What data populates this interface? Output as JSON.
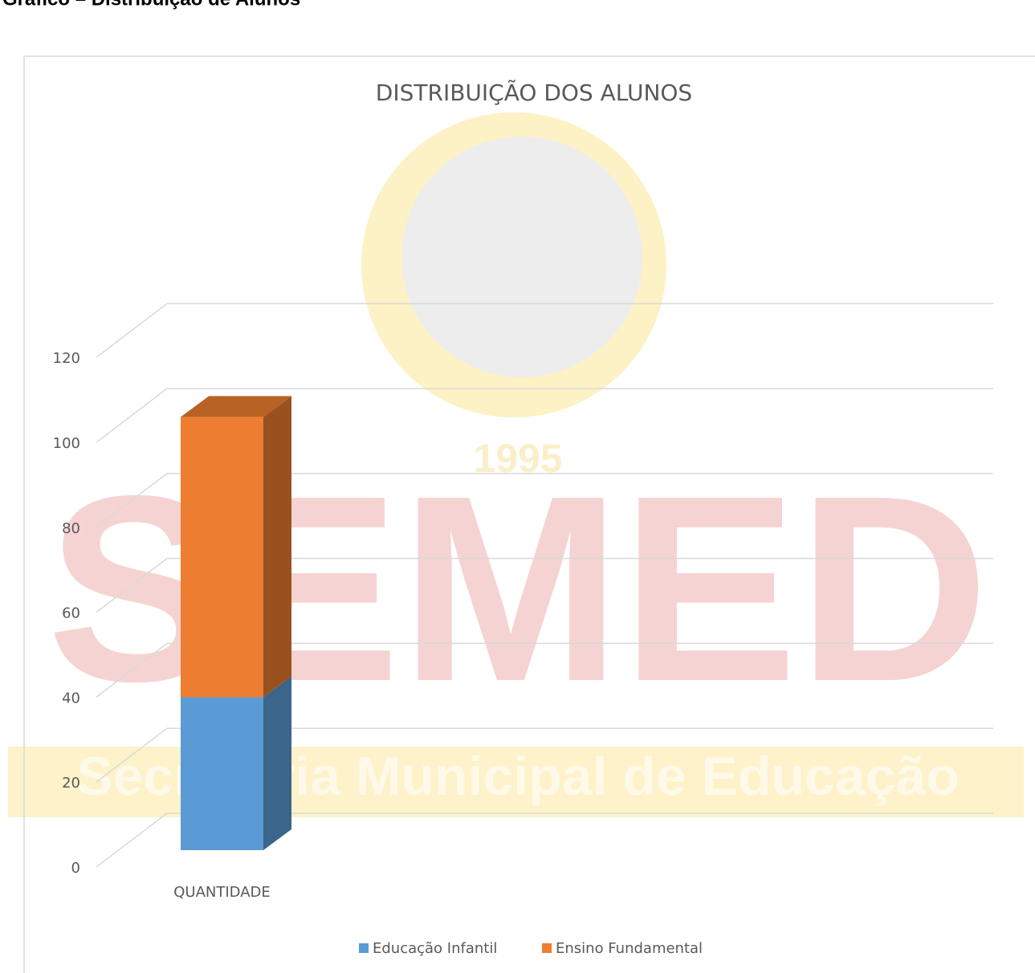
{
  "header": {
    "title": "Gráfico – Distribuição de Alunos"
  },
  "watermark": {
    "acronym": "SEMED",
    "name": "Secretaria Municipal de Educação",
    "year": "1995"
  },
  "chart_data": {
    "type": "bar3d-stacked",
    "title": "DISTRIBUIÇÃO DOS ALUNOS",
    "categories": [
      "QUANTIDADE"
    ],
    "series": [
      {
        "name": "Educação Infantil",
        "color": "#5b9bd5",
        "values": [
          36
        ]
      },
      {
        "name": "Ensino Fundamental",
        "color": "#ed7d31",
        "values": [
          66
        ]
      }
    ],
    "ylim": [
      0,
      120
    ],
    "yticks": [
      0,
      20,
      40,
      60,
      80,
      100,
      120
    ],
    "grid": true,
    "legend": "bottom"
  }
}
